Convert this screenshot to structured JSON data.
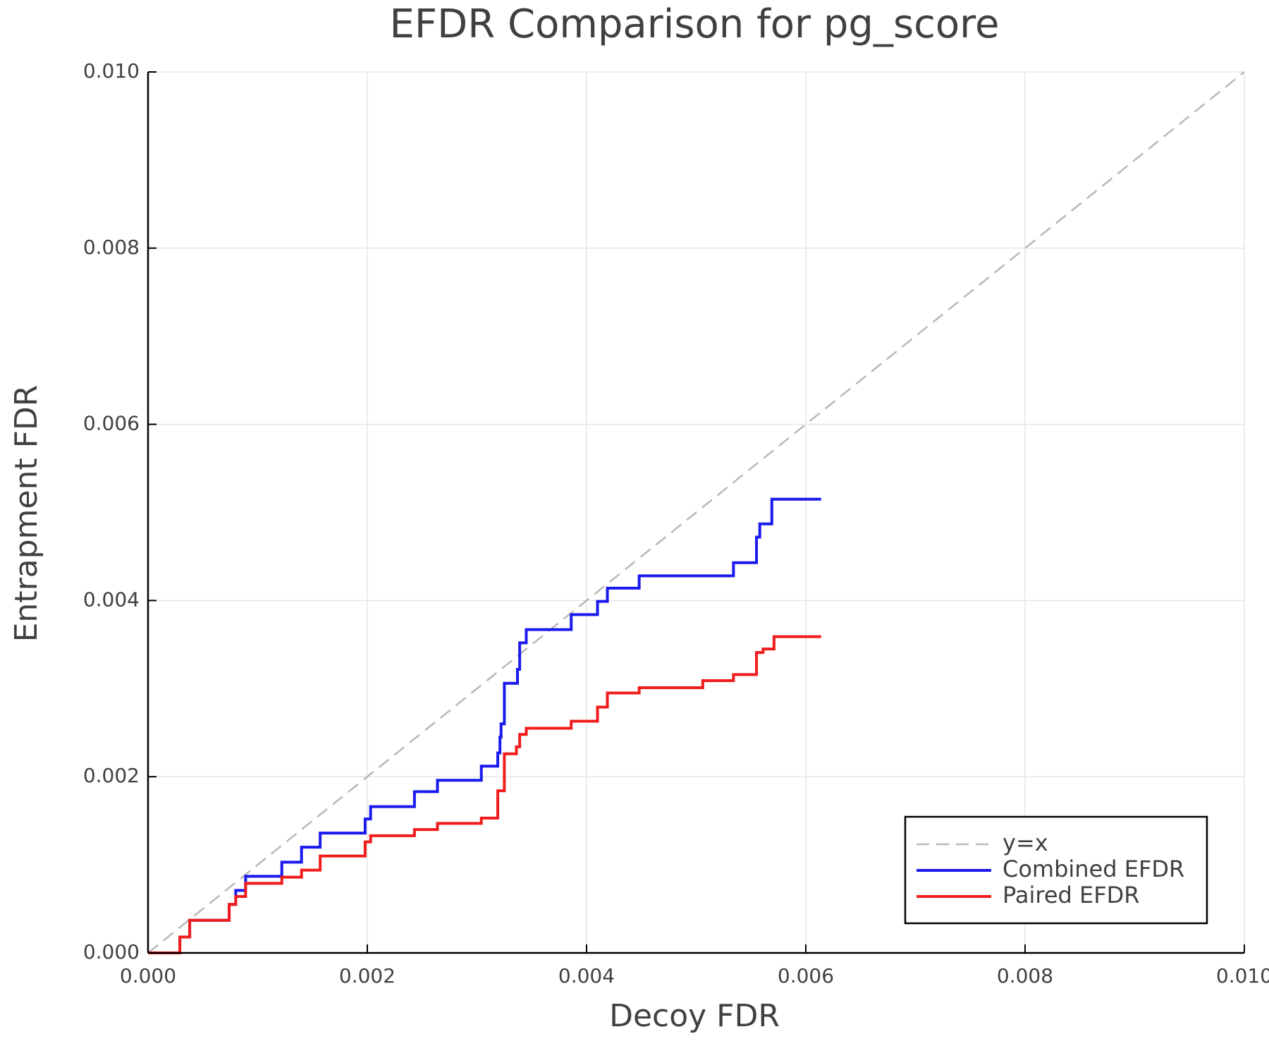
{
  "chart_data": {
    "type": "line",
    "title": "EFDR Comparison for pg_score",
    "x_label": "Decoy FDR",
    "y_label": "Entrapment FDR",
    "xlim": [
      0,
      0.01
    ],
    "ylim": [
      0,
      0.01
    ],
    "xticks": [
      {
        "value": 0,
        "label": "0.000"
      },
      0.002,
      0.004,
      0.006,
      0.008,
      {
        "value": 0.01,
        "label": "0.010"
      }
    ],
    "yticks": [
      {
        "value": 0,
        "label": "0.000"
      },
      0.002,
      0.004,
      0.006,
      0.008,
      {
        "value": 0.01,
        "label": "0.010"
      }
    ],
    "grid": true,
    "legend": "bottom-right",
    "series": [
      {
        "name": "y=x",
        "color": "#b8b8b8",
        "dashed": true,
        "x": [
          0,
          0.01
        ],
        "values": [
          0,
          0.01
        ]
      },
      {
        "name": "Combined EFDR",
        "color": "#1a1aee",
        "dashed": false,
        "x": [
          0,
          0.00029,
          0.00029,
          0.00038,
          0.00038,
          0.00074,
          0.00074,
          0.0008,
          0.0008,
          0.00089,
          0.00089,
          0.00122,
          0.00122,
          0.0014,
          0.0014,
          0.00157,
          0.00157,
          0.00198,
          0.00198,
          0.00203,
          0.00203,
          0.00243,
          0.00243,
          0.00264,
          0.00264,
          0.00304,
          0.00304,
          0.00319,
          0.00319,
          0.00321,
          0.00321,
          0.00322,
          0.00322,
          0.00325,
          0.00325,
          0.00337,
          0.00337,
          0.00339,
          0.00339,
          0.00345,
          0.00345,
          0.00386,
          0.00386,
          0.0041,
          0.0041,
          0.00419,
          0.00419,
          0.00448,
          0.00448,
          0.00534,
          0.00534,
          0.00555,
          0.00555,
          0.00558,
          0.00558,
          0.00569,
          0.00569,
          0.00614
        ],
        "values": [
          0,
          0,
          0.00018,
          0.00018,
          0.00037,
          0.00037,
          0.00055,
          0.00055,
          0.00071,
          0.00071,
          0.00087,
          0.00087,
          0.00103,
          0.00103,
          0.0012,
          0.0012,
          0.00136,
          0.00136,
          0.00152,
          0.00152,
          0.00166,
          0.00166,
          0.00183,
          0.00183,
          0.00196,
          0.00196,
          0.00212,
          0.00212,
          0.00227,
          0.00227,
          0.00245,
          0.00245,
          0.0026,
          0.0026,
          0.00306,
          0.00306,
          0.00322,
          0.00322,
          0.00352,
          0.00352,
          0.00367,
          0.00367,
          0.00384,
          0.00384,
          0.00399,
          0.00399,
          0.00414,
          0.00414,
          0.00428,
          0.00428,
          0.00443,
          0.00443,
          0.00472,
          0.00472,
          0.00487,
          0.00487,
          0.00515,
          0.00515
        ]
      },
      {
        "name": "Paired EFDR",
        "color": "#f01c1c",
        "dashed": false,
        "x": [
          0,
          0.00029,
          0.00029,
          0.00038,
          0.00038,
          0.00074,
          0.00074,
          0.0008,
          0.0008,
          0.00089,
          0.00089,
          0.00122,
          0.00122,
          0.0014,
          0.0014,
          0.00157,
          0.00157,
          0.00198,
          0.00198,
          0.00203,
          0.00203,
          0.00243,
          0.00243,
          0.00264,
          0.00264,
          0.00304,
          0.00304,
          0.00319,
          0.00319,
          0.00325,
          0.00325,
          0.00336,
          0.00336,
          0.00339,
          0.00339,
          0.00345,
          0.00345,
          0.00386,
          0.00386,
          0.0041,
          0.0041,
          0.00419,
          0.00419,
          0.00448,
          0.00448,
          0.00506,
          0.00506,
          0.00534,
          0.00534,
          0.00555,
          0.00555,
          0.00561,
          0.00561,
          0.00571,
          0.00571,
          0.00614
        ],
        "values": [
          0,
          0,
          0.00018,
          0.00018,
          0.00037,
          0.00037,
          0.00055,
          0.00055,
          0.00064,
          0.00064,
          0.00079,
          0.00079,
          0.00086,
          0.00086,
          0.00094,
          0.00094,
          0.0011,
          0.0011,
          0.00126,
          0.00126,
          0.00133,
          0.00133,
          0.0014,
          0.0014,
          0.00147,
          0.00147,
          0.00153,
          0.00153,
          0.00184,
          0.00184,
          0.00226,
          0.00226,
          0.00234,
          0.00234,
          0.00248,
          0.00248,
          0.00255,
          0.00255,
          0.00263,
          0.00263,
          0.00279,
          0.00279,
          0.00295,
          0.00295,
          0.00301,
          0.00301,
          0.00309,
          0.00309,
          0.00316,
          0.00316,
          0.00341,
          0.00341,
          0.00345,
          0.00345,
          0.00359,
          0.00359
        ]
      }
    ]
  }
}
